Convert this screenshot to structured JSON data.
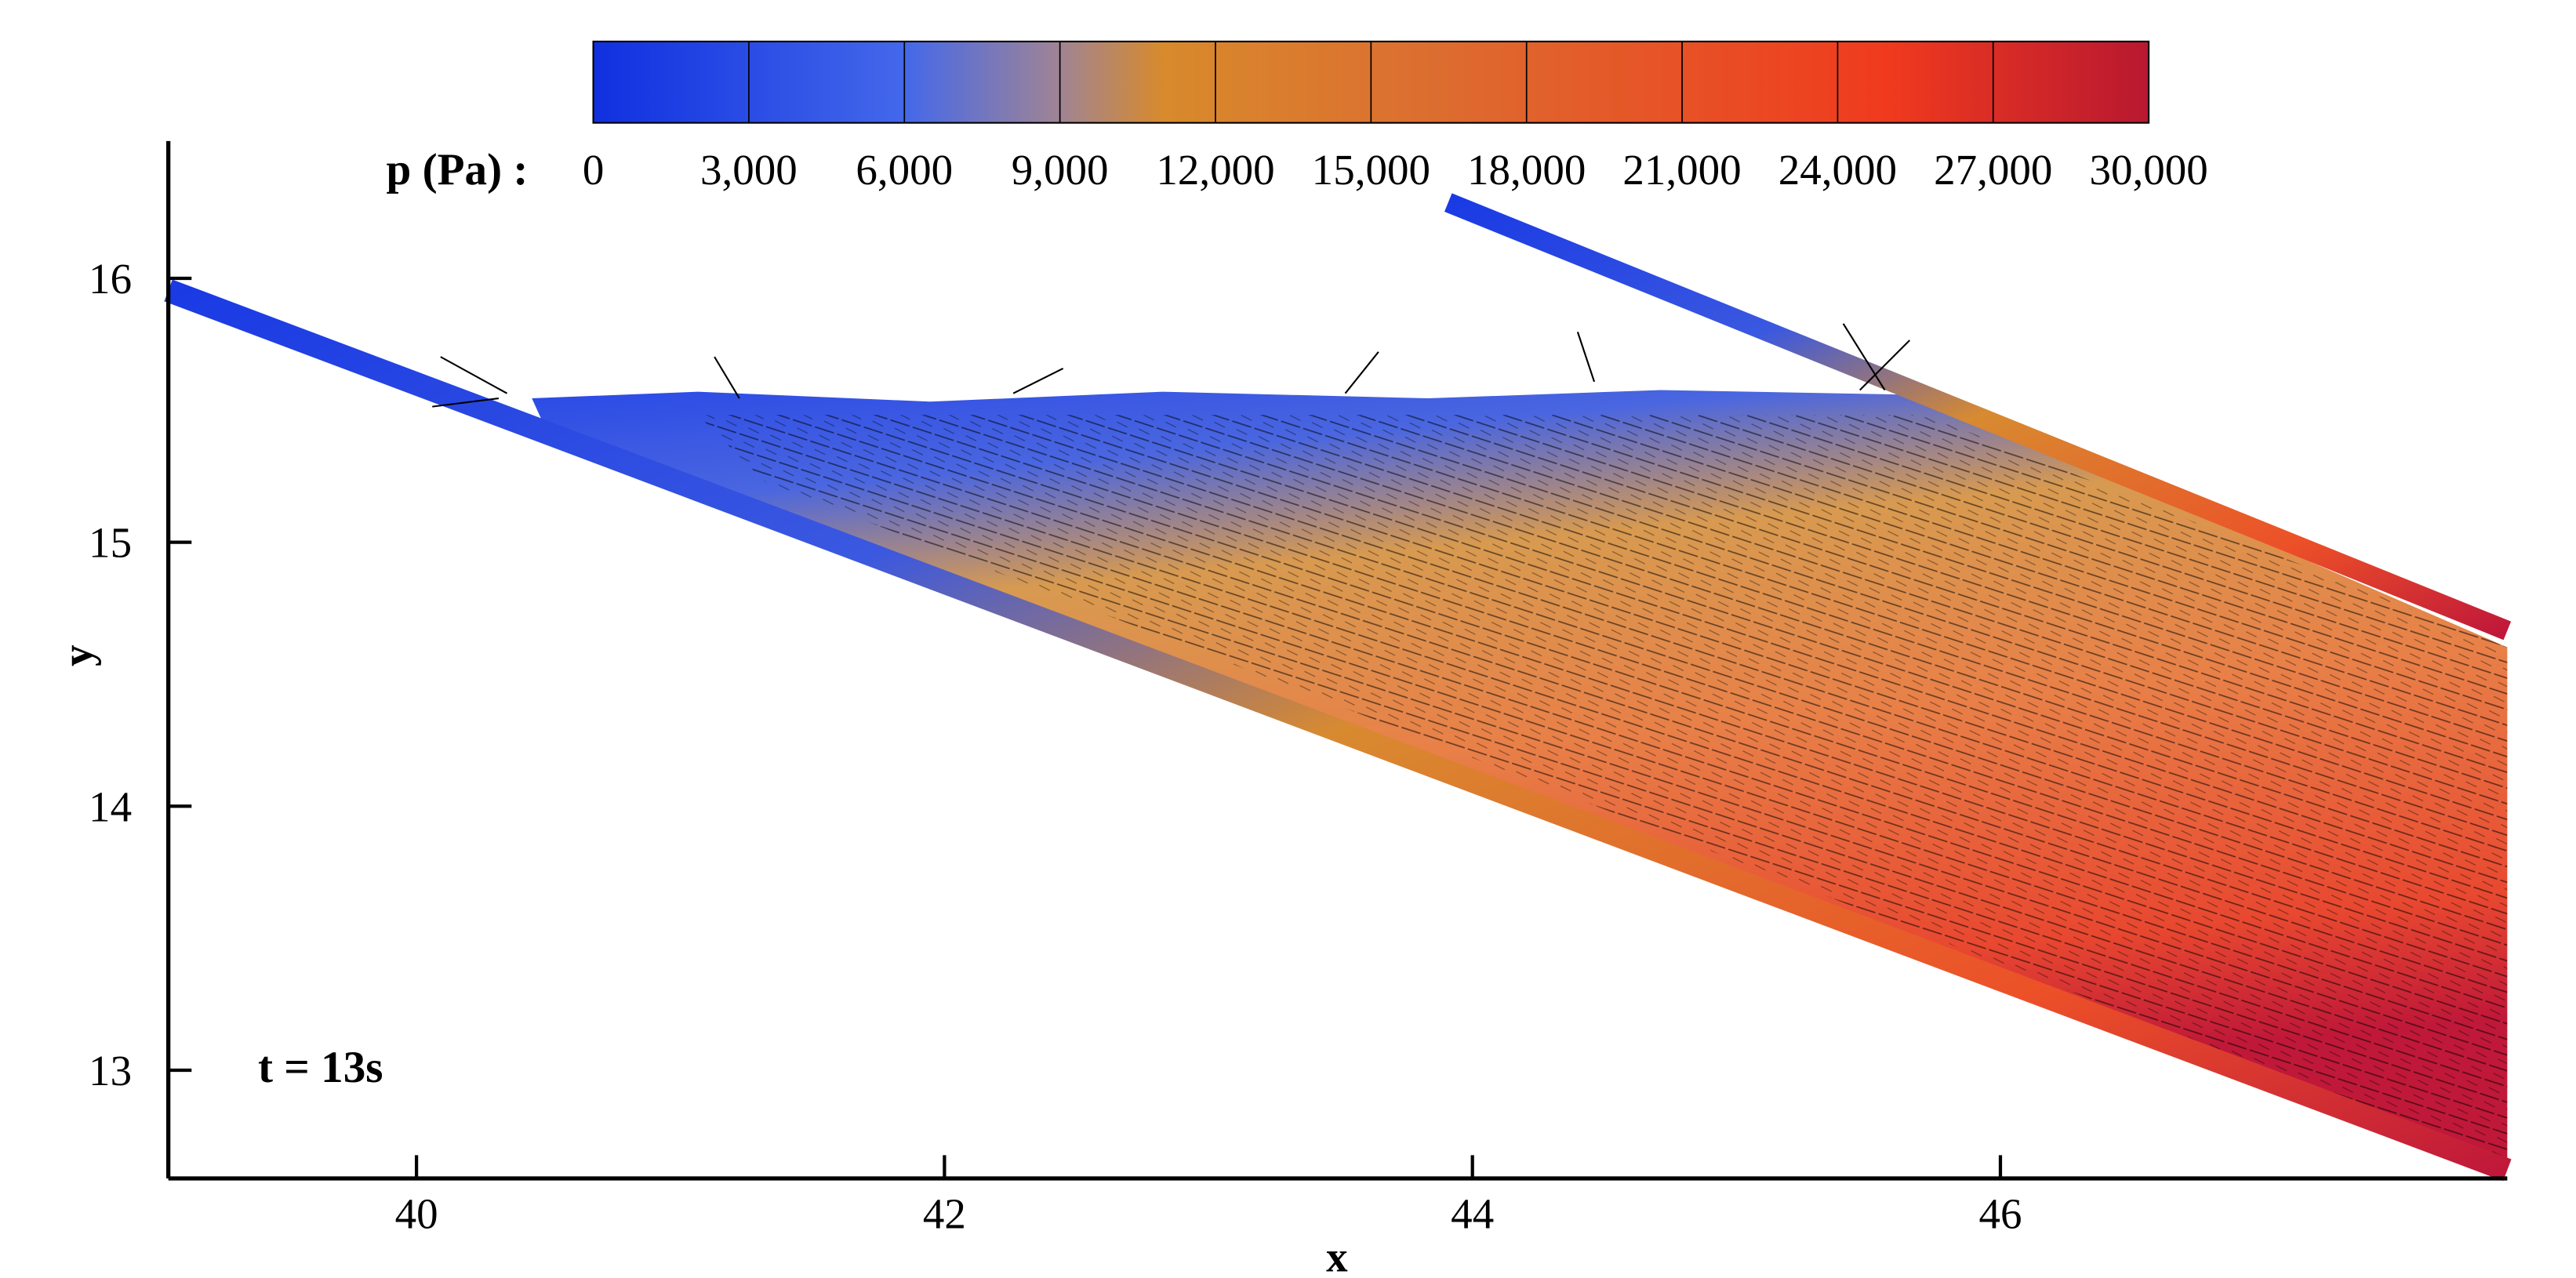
{
  "chart_data": {
    "type": "field",
    "annotation": "t = 13s",
    "xlabel": "x",
    "ylabel": "y",
    "xlim": [
      39.06,
      47.92
    ],
    "xticks": [
      40,
      42,
      44,
      46
    ],
    "ylim": [
      12.59,
      16.52
    ],
    "yticks": [
      13,
      14,
      15,
      16
    ],
    "colorbar": {
      "label": "p (Pa) :",
      "lim": [
        0,
        30000
      ],
      "ticks": [
        0,
        {
          "value": 3000,
          "label": "3,000"
        },
        {
          "value": 6000,
          "label": "6,000"
        },
        {
          "value": 9000,
          "label": "9,000"
        },
        {
          "value": 12000,
          "label": "12,000"
        },
        {
          "value": 15000,
          "label": "15,000"
        },
        {
          "value": 18000,
          "label": "18,000"
        },
        {
          "value": 21000,
          "label": "21,000"
        },
        {
          "value": 24000,
          "label": "24,000"
        },
        {
          "value": 27000,
          "label": "27,000"
        },
        {
          "value": 30000,
          "label": "30,000"
        }
      ],
      "colormap": [
        {
          "value": 0,
          "color": "#1030e0"
        },
        {
          "value": 6000,
          "color": "#4468ea"
        },
        {
          "value": 9000,
          "color": "#a08494"
        },
        {
          "value": 11000,
          "color": "#d88a2c"
        },
        {
          "value": 16000,
          "color": "#dc6e30"
        },
        {
          "value": 25000,
          "color": "#f03a1e"
        },
        {
          "value": 30000,
          "color": "#b81830"
        }
      ]
    }
  }
}
